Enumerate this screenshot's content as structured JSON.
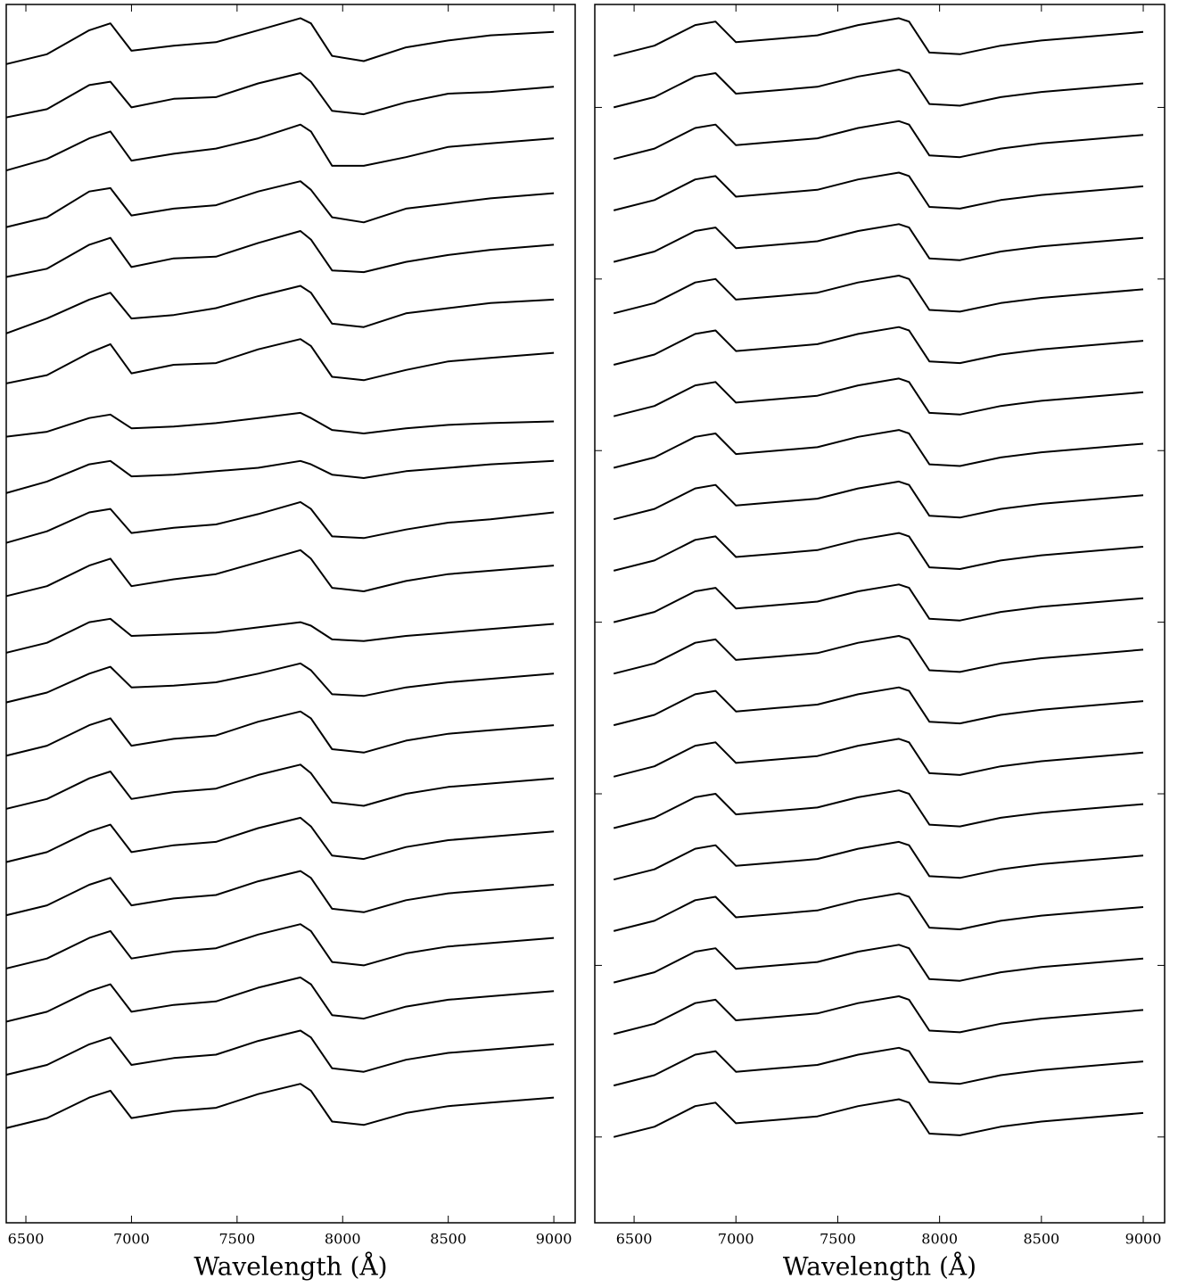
{
  "chart_data": [
    {
      "type": "line",
      "xlabel": "Wavelength (Å)",
      "color": "#000000",
      "x": [
        6400,
        6600,
        6800,
        6900,
        7000,
        7200,
        7400,
        7600,
        7800,
        7850,
        7950,
        8100,
        8300,
        8500,
        8700,
        9000
      ],
      "xlim": [
        6407,
        9101
      ],
      "xticks": [
        6500,
        7000,
        7500,
        8000,
        8500,
        9000
      ],
      "ylim": [
        -0.5,
        6.6
      ],
      "series": [
        {
          "values": [
            6.25,
            6.31,
            6.45,
            6.49,
            6.33,
            6.36,
            6.38,
            6.45,
            6.52,
            6.49,
            6.3,
            6.27,
            6.35,
            6.39,
            6.42,
            6.44
          ]
        },
        {
          "values": [
            5.94,
            5.99,
            6.13,
            6.15,
            6.0,
            6.05,
            6.06,
            6.14,
            6.2,
            6.15,
            5.98,
            5.96,
            6.03,
            6.08,
            6.09,
            6.12
          ]
        },
        {
          "values": [
            5.63,
            5.7,
            5.82,
            5.86,
            5.69,
            5.73,
            5.76,
            5.82,
            5.9,
            5.86,
            5.66,
            5.66,
            5.71,
            5.77,
            5.79,
            5.82
          ]
        },
        {
          "values": [
            5.3,
            5.36,
            5.51,
            5.53,
            5.37,
            5.41,
            5.43,
            5.51,
            5.57,
            5.52,
            5.36,
            5.33,
            5.41,
            5.44,
            5.47,
            5.5
          ]
        },
        {
          "values": [
            5.01,
            5.06,
            5.2,
            5.24,
            5.07,
            5.12,
            5.13,
            5.21,
            5.28,
            5.23,
            5.05,
            5.04,
            5.1,
            5.14,
            5.17,
            5.2
          ]
        },
        {
          "values": [
            4.68,
            4.77,
            4.88,
            4.92,
            4.77,
            4.79,
            4.83,
            4.9,
            4.96,
            4.92,
            4.74,
            4.72,
            4.8,
            4.83,
            4.86,
            4.88
          ]
        },
        {
          "values": [
            4.39,
            4.44,
            4.57,
            4.62,
            4.45,
            4.5,
            4.51,
            4.59,
            4.65,
            4.61,
            4.43,
            4.41,
            4.47,
            4.52,
            4.54,
            4.57
          ]
        },
        {
          "values": [
            4.08,
            4.11,
            4.19,
            4.21,
            4.13,
            4.14,
            4.16,
            4.19,
            4.22,
            4.19,
            4.12,
            4.1,
            4.13,
            4.15,
            4.16,
            4.17
          ]
        },
        {
          "values": [
            3.75,
            3.82,
            3.92,
            3.94,
            3.85,
            3.86,
            3.88,
            3.9,
            3.94,
            3.92,
            3.86,
            3.84,
            3.88,
            3.9,
            3.92,
            3.94
          ]
        },
        {
          "values": [
            3.46,
            3.53,
            3.64,
            3.66,
            3.52,
            3.55,
            3.57,
            3.63,
            3.7,
            3.66,
            3.5,
            3.49,
            3.54,
            3.58,
            3.6,
            3.64
          ]
        },
        {
          "values": [
            3.15,
            3.21,
            3.33,
            3.37,
            3.21,
            3.25,
            3.28,
            3.35,
            3.42,
            3.37,
            3.2,
            3.18,
            3.24,
            3.28,
            3.3,
            3.33
          ]
        },
        {
          "values": [
            2.82,
            2.88,
            3.0,
            3.02,
            2.92,
            2.93,
            2.94,
            2.97,
            3.0,
            2.98,
            2.9,
            2.89,
            2.92,
            2.94,
            2.96,
            2.99
          ]
        },
        {
          "values": [
            2.53,
            2.59,
            2.7,
            2.74,
            2.62,
            2.63,
            2.65,
            2.7,
            2.76,
            2.72,
            2.58,
            2.57,
            2.62,
            2.65,
            2.67,
            2.7
          ]
        },
        {
          "values": [
            2.22,
            2.28,
            2.4,
            2.44,
            2.28,
            2.32,
            2.34,
            2.42,
            2.48,
            2.44,
            2.26,
            2.24,
            2.31,
            2.35,
            2.37,
            2.4
          ]
        },
        {
          "values": [
            1.91,
            1.97,
            2.09,
            2.13,
            1.97,
            2.01,
            2.03,
            2.11,
            2.17,
            2.12,
            1.95,
            1.93,
            2.0,
            2.04,
            2.06,
            2.09
          ]
        },
        {
          "values": [
            1.6,
            1.66,
            1.78,
            1.82,
            1.66,
            1.7,
            1.72,
            1.8,
            1.86,
            1.81,
            1.64,
            1.62,
            1.69,
            1.73,
            1.75,
            1.78
          ]
        },
        {
          "values": [
            1.29,
            1.35,
            1.47,
            1.51,
            1.35,
            1.39,
            1.41,
            1.49,
            1.55,
            1.51,
            1.33,
            1.31,
            1.38,
            1.42,
            1.44,
            1.47
          ]
        },
        {
          "values": [
            0.98,
            1.04,
            1.16,
            1.2,
            1.04,
            1.08,
            1.1,
            1.18,
            1.24,
            1.2,
            1.02,
            1.0,
            1.07,
            1.11,
            1.13,
            1.16
          ]
        },
        {
          "values": [
            0.67,
            0.73,
            0.85,
            0.89,
            0.73,
            0.77,
            0.79,
            0.87,
            0.93,
            0.89,
            0.71,
            0.69,
            0.76,
            0.8,
            0.82,
            0.85
          ]
        },
        {
          "values": [
            0.36,
            0.42,
            0.54,
            0.58,
            0.42,
            0.46,
            0.48,
            0.56,
            0.62,
            0.58,
            0.4,
            0.38,
            0.45,
            0.49,
            0.51,
            0.54
          ]
        },
        {
          "values": [
            0.05,
            0.11,
            0.23,
            0.27,
            0.11,
            0.15,
            0.17,
            0.25,
            0.31,
            0.27,
            0.09,
            0.07,
            0.14,
            0.18,
            0.2,
            0.23
          ]
        }
      ]
    },
    {
      "type": "line",
      "xlabel": "Wavelength (Å)",
      "color": "#000000",
      "x": [
        6400,
        6600,
        6800,
        6900,
        7000,
        7200,
        7400,
        7600,
        7800,
        7850,
        7950,
        8100,
        8300,
        8500,
        8700,
        9000
      ],
      "xlim": [
        6307,
        9105
      ],
      "xticks": [
        6500,
        7000,
        7500,
        8000,
        8500,
        9000
      ],
      "ylim": [
        -0.5,
        6.6
      ],
      "yticks": [
        0,
        1,
        2,
        3,
        4,
        5,
        6
      ],
      "series": [
        {
          "values": [
            6.3,
            6.36,
            6.48,
            6.5,
            6.38,
            6.4,
            6.42,
            6.48,
            6.52,
            6.5,
            6.32,
            6.31,
            6.36,
            6.39,
            6.41,
            6.44
          ]
        },
        {
          "values": [
            6.0,
            6.06,
            6.18,
            6.2,
            6.08,
            6.1,
            6.12,
            6.18,
            6.22,
            6.2,
            6.02,
            6.01,
            6.06,
            6.09,
            6.11,
            6.14
          ]
        },
        {
          "values": [
            5.7,
            5.76,
            5.88,
            5.9,
            5.78,
            5.8,
            5.82,
            5.88,
            5.92,
            5.9,
            5.72,
            5.71,
            5.76,
            5.79,
            5.81,
            5.84
          ]
        },
        {
          "values": [
            5.4,
            5.46,
            5.58,
            5.6,
            5.48,
            5.5,
            5.52,
            5.58,
            5.62,
            5.6,
            5.42,
            5.41,
            5.46,
            5.49,
            5.51,
            5.54
          ]
        },
        {
          "values": [
            5.1,
            5.16,
            5.28,
            5.3,
            5.18,
            5.2,
            5.22,
            5.28,
            5.32,
            5.3,
            5.12,
            5.11,
            5.16,
            5.19,
            5.21,
            5.24
          ]
        },
        {
          "values": [
            4.8,
            4.86,
            4.98,
            5.0,
            4.88,
            4.9,
            4.92,
            4.98,
            5.02,
            5.0,
            4.82,
            4.81,
            4.86,
            4.89,
            4.91,
            4.94
          ]
        },
        {
          "values": [
            4.5,
            4.56,
            4.68,
            4.7,
            4.58,
            4.6,
            4.62,
            4.68,
            4.72,
            4.7,
            4.52,
            4.51,
            4.56,
            4.59,
            4.61,
            4.64
          ]
        },
        {
          "values": [
            4.2,
            4.26,
            4.38,
            4.4,
            4.28,
            4.3,
            4.32,
            4.38,
            4.42,
            4.4,
            4.22,
            4.21,
            4.26,
            4.29,
            4.31,
            4.34
          ]
        },
        {
          "values": [
            3.9,
            3.96,
            4.08,
            4.1,
            3.98,
            4.0,
            4.02,
            4.08,
            4.12,
            4.1,
            3.92,
            3.91,
            3.96,
            3.99,
            4.01,
            4.04
          ]
        },
        {
          "values": [
            3.6,
            3.66,
            3.78,
            3.8,
            3.68,
            3.7,
            3.72,
            3.78,
            3.82,
            3.8,
            3.62,
            3.61,
            3.66,
            3.69,
            3.71,
            3.74
          ]
        },
        {
          "values": [
            3.3,
            3.36,
            3.48,
            3.5,
            3.38,
            3.4,
            3.42,
            3.48,
            3.52,
            3.5,
            3.32,
            3.31,
            3.36,
            3.39,
            3.41,
            3.44
          ]
        },
        {
          "values": [
            3.0,
            3.06,
            3.18,
            3.2,
            3.08,
            3.1,
            3.12,
            3.18,
            3.22,
            3.2,
            3.02,
            3.01,
            3.06,
            3.09,
            3.11,
            3.14
          ]
        },
        {
          "values": [
            2.7,
            2.76,
            2.88,
            2.9,
            2.78,
            2.8,
            2.82,
            2.88,
            2.92,
            2.9,
            2.72,
            2.71,
            2.76,
            2.79,
            2.81,
            2.84
          ]
        },
        {
          "values": [
            2.4,
            2.46,
            2.58,
            2.6,
            2.48,
            2.5,
            2.52,
            2.58,
            2.62,
            2.6,
            2.42,
            2.41,
            2.46,
            2.49,
            2.51,
            2.54
          ]
        },
        {
          "values": [
            2.1,
            2.16,
            2.28,
            2.3,
            2.18,
            2.2,
            2.22,
            2.28,
            2.32,
            2.3,
            2.12,
            2.11,
            2.16,
            2.19,
            2.21,
            2.24
          ]
        },
        {
          "values": [
            1.8,
            1.86,
            1.98,
            2.0,
            1.88,
            1.9,
            1.92,
            1.98,
            2.02,
            2.0,
            1.82,
            1.81,
            1.86,
            1.89,
            1.91,
            1.94
          ]
        },
        {
          "values": [
            1.5,
            1.56,
            1.68,
            1.7,
            1.58,
            1.6,
            1.62,
            1.68,
            1.72,
            1.7,
            1.52,
            1.51,
            1.56,
            1.59,
            1.61,
            1.64
          ]
        },
        {
          "values": [
            1.2,
            1.26,
            1.38,
            1.4,
            1.28,
            1.3,
            1.32,
            1.38,
            1.42,
            1.4,
            1.22,
            1.21,
            1.26,
            1.29,
            1.31,
            1.34
          ]
        },
        {
          "values": [
            0.9,
            0.96,
            1.08,
            1.1,
            0.98,
            1.0,
            1.02,
            1.08,
            1.12,
            1.1,
            0.92,
            0.91,
            0.96,
            0.99,
            1.01,
            1.04
          ]
        },
        {
          "values": [
            0.6,
            0.66,
            0.78,
            0.8,
            0.68,
            0.7,
            0.72,
            0.78,
            0.82,
            0.8,
            0.62,
            0.61,
            0.66,
            0.69,
            0.71,
            0.74
          ]
        },
        {
          "values": [
            0.3,
            0.36,
            0.48,
            0.5,
            0.38,
            0.4,
            0.42,
            0.48,
            0.52,
            0.5,
            0.32,
            0.31,
            0.36,
            0.39,
            0.41,
            0.44
          ]
        },
        {
          "values": [
            0.0,
            0.06,
            0.18,
            0.2,
            0.08,
            0.1,
            0.12,
            0.18,
            0.22,
            0.2,
            0.02,
            0.01,
            0.06,
            0.09,
            0.11,
            0.14
          ]
        }
      ]
    }
  ]
}
